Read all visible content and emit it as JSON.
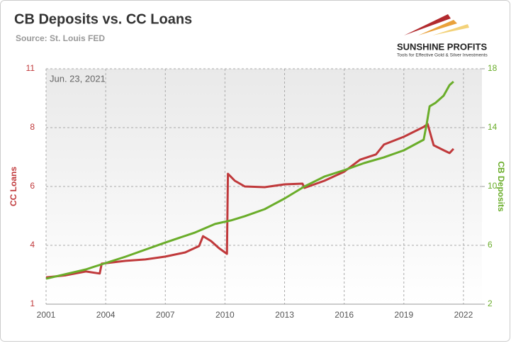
{
  "chart_data": {
    "type": "line",
    "title": "CB Deposits vs. CC Loans",
    "subtitle": "Source: St. Louis FED",
    "annotation": "Jun. 23, 2021",
    "logo": {
      "name": "SUNSHINE PROFITS",
      "tagline": "Tools for Effective Gold & Silver Investments"
    },
    "ylabel": "CC Loans",
    "y2label": "CB Deposits",
    "xlim": [
      2001,
      2022.93
    ],
    "xticks": [
      2001,
      2004,
      2007,
      2010,
      2013,
      2016,
      2019,
      2022
    ],
    "ylim": [
      1,
      11
    ],
    "yticks": [
      1,
      {
        "value": 3.5,
        "label": "4"
      },
      6,
      {
        "value": 8.5,
        "label": "8"
      },
      11
    ],
    "y2lim": [
      2,
      18
    ],
    "y2ticks": [
      2,
      6,
      10,
      14,
      18
    ],
    "grid": true,
    "series": [
      {
        "name": "CC Loans",
        "color": "#c0393b",
        "x": [
          2001,
          2002,
          2003,
          2003.7,
          2003.8,
          2005,
          2006,
          2007,
          2008,
          2008.7,
          2008.9,
          2009.3,
          2009.7,
          2010.1,
          2010.15,
          2010.5,
          2011,
          2012,
          2013,
          2013.9,
          2014,
          2015,
          2016,
          2016.8,
          2017.6,
          2018,
          2019,
          2020,
          2020.2,
          2020.5,
          2021,
          2021.3,
          2021.5
        ],
        "values": [
          2.14,
          2.23,
          2.39,
          2.3,
          2.72,
          2.84,
          2.9,
          3.02,
          3.2,
          3.47,
          3.89,
          3.68,
          3.38,
          3.14,
          6.54,
          6.24,
          6.0,
          5.97,
          6.09,
          6.12,
          5.94,
          6.24,
          6.63,
          7.14,
          7.36,
          7.78,
          8.11,
          8.53,
          8.65,
          7.75,
          7.54,
          7.42,
          7.6
        ]
      },
      {
        "name": "CB Deposits",
        "color": "#6aad2a",
        "axis": "y2",
        "x": [
          2001,
          2003,
          2005,
          2007,
          2008.5,
          2009.5,
          2010.3,
          2011,
          2012,
          2013,
          2014,
          2015,
          2016,
          2017,
          2018,
          2019,
          2020,
          2020.15,
          2020.3,
          2020.6,
          2021,
          2021.3,
          2021.5
        ],
        "values": [
          3.73,
          4.36,
          5.23,
          6.19,
          6.87,
          7.45,
          7.69,
          7.98,
          8.46,
          9.18,
          10.0,
          10.67,
          11.11,
          11.59,
          11.98,
          12.46,
          13.18,
          14.24,
          15.45,
          15.69,
          16.17,
          16.89,
          17.13
        ]
      }
    ]
  }
}
